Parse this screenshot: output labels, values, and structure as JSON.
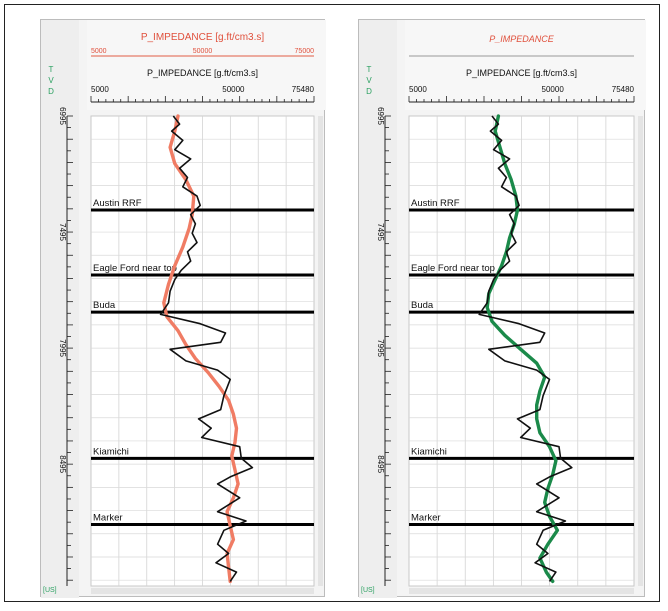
{
  "chart_data": [
    {
      "type": "line",
      "title": "P_IMPEDANCE [g.ft/cm3.s]",
      "scale_min_label": "5000",
      "scale_mid_label": "50000",
      "scale_max_label": "75000",
      "xlabel": "P_IMPEDANCE [g.ft/cm3.s]",
      "x_ticks": [
        "5000",
        "50000",
        "75480"
      ],
      "xlim": [
        5000,
        75480
      ],
      "y_axis_label": "TVD",
      "y_ticks": [
        "6995",
        "7495",
        "7995",
        "8495"
      ],
      "ylim": [
        6995,
        9020
      ],
      "units_label": "[US]",
      "log_color": "#111111",
      "model_color": "#f07c64",
      "formations": [
        {
          "name": "Austin RRF",
          "depth": 7400
        },
        {
          "name": "Eagle Ford near top",
          "depth": 7680
        },
        {
          "name": "Buda",
          "depth": 7840
        },
        {
          "name": "Kiamichi",
          "depth": 8470
        },
        {
          "name": "Marker",
          "depth": 8755
        }
      ],
      "series": [
        {
          "values": [
            [
              31000,
              6995
            ],
            [
              33000,
              7030
            ],
            [
              30500,
              7060
            ],
            [
              34000,
              7100
            ],
            [
              31500,
              7140
            ],
            [
              36500,
              7180
            ],
            [
              33000,
              7220
            ],
            [
              35500,
              7260
            ],
            [
              34000,
              7300
            ],
            [
              38500,
              7340
            ],
            [
              39500,
              7380
            ],
            [
              36500,
              7420
            ],
            [
              38000,
              7460
            ],
            [
              37000,
              7500
            ],
            [
              38500,
              7540
            ],
            [
              35500,
              7580
            ],
            [
              36500,
              7620
            ],
            [
              33500,
              7660
            ],
            [
              31500,
              7700
            ],
            [
              30000,
              7750
            ],
            [
              29500,
              7800
            ],
            [
              27000,
              7850
            ],
            [
              39500,
              7890
            ],
            [
              47500,
              7930
            ],
            [
              46000,
              7970
            ],
            [
              30000,
              8000
            ],
            [
              35000,
              8050
            ],
            [
              45000,
              8090
            ],
            [
              49000,
              8130
            ],
            [
              47000,
              8200
            ],
            [
              46000,
              8260
            ],
            [
              39000,
              8300
            ],
            [
              43000,
              8340
            ],
            [
              40000,
              8380
            ],
            [
              52000,
              8420
            ],
            [
              52500,
              8470
            ],
            [
              56000,
              8510
            ],
            [
              49000,
              8550
            ],
            [
              45000,
              8580
            ],
            [
              52000,
              8640
            ],
            [
              45000,
              8700
            ],
            [
              54000,
              8740
            ],
            [
              47000,
              8780
            ],
            [
              45000,
              8840
            ],
            [
              48500,
              8880
            ],
            [
              44500,
              8920
            ],
            [
              51000,
              8960
            ],
            [
              49000,
              9000
            ]
          ]
        },
        {
          "values": [
            [
              32500,
              6995
            ],
            [
              31500,
              7060
            ],
            [
              30000,
              7130
            ],
            [
              31500,
              7200
            ],
            [
              35000,
              7270
            ],
            [
              37500,
              7340
            ],
            [
              37000,
              7420
            ],
            [
              36000,
              7480
            ],
            [
              34000,
              7560
            ],
            [
              31500,
              7640
            ],
            [
              29500,
              7720
            ],
            [
              28000,
              7800
            ],
            [
              29000,
              7860
            ],
            [
              32500,
              7920
            ],
            [
              35000,
              7980
            ],
            [
              38000,
              8040
            ],
            [
              42000,
              8100
            ],
            [
              45500,
              8160
            ],
            [
              48500,
              8220
            ],
            [
              50000,
              8280
            ],
            [
              51000,
              8340
            ],
            [
              50500,
              8400
            ],
            [
              49500,
              8460
            ],
            [
              50500,
              8520
            ],
            [
              51500,
              8580
            ],
            [
              50000,
              8640
            ],
            [
              48000,
              8700
            ],
            [
              49000,
              8760
            ],
            [
              50000,
              8820
            ],
            [
              48000,
              8880
            ],
            [
              48500,
              8940
            ],
            [
              49000,
              9000
            ]
          ]
        }
      ]
    },
    {
      "type": "line",
      "title": "P_IMPEDANCE",
      "xlabel": "P_IMPEDANCE [g.ft/cm3.s]",
      "x_ticks": [
        "5000",
        "50000",
        "75480"
      ],
      "xlim": [
        5000,
        75480
      ],
      "y_axis_label": "TVD",
      "y_ticks": [
        "6995",
        "7495",
        "7995",
        "8495"
      ],
      "ylim": [
        6995,
        9020
      ],
      "units_label": "[US]",
      "log_color": "#111111",
      "model_color": "#1b8a4a",
      "formations": [
        {
          "name": "Austin RRF",
          "depth": 7400
        },
        {
          "name": "Eagle Ford near top",
          "depth": 7680
        },
        {
          "name": "Buda",
          "depth": 7840
        },
        {
          "name": "Kiamichi",
          "depth": 8470
        },
        {
          "name": "Marker",
          "depth": 8755
        }
      ],
      "series": [
        {
          "values": [
            [
              31000,
              6995
            ],
            [
              33000,
              7030
            ],
            [
              30500,
              7060
            ],
            [
              34000,
              7100
            ],
            [
              31500,
              7140
            ],
            [
              36500,
              7180
            ],
            [
              33000,
              7220
            ],
            [
              35500,
              7260
            ],
            [
              34000,
              7300
            ],
            [
              38500,
              7340
            ],
            [
              39500,
              7380
            ],
            [
              36500,
              7420
            ],
            [
              38000,
              7460
            ],
            [
              37000,
              7500
            ],
            [
              38500,
              7540
            ],
            [
              35500,
              7580
            ],
            [
              36500,
              7620
            ],
            [
              33500,
              7660
            ],
            [
              31500,
              7700
            ],
            [
              30000,
              7750
            ],
            [
              29500,
              7800
            ],
            [
              27000,
              7850
            ],
            [
              39500,
              7890
            ],
            [
              47500,
              7930
            ],
            [
              46000,
              7970
            ],
            [
              30000,
              8000
            ],
            [
              35000,
              8050
            ],
            [
              45000,
              8090
            ],
            [
              49000,
              8130
            ],
            [
              47000,
              8200
            ],
            [
              46000,
              8260
            ],
            [
              39000,
              8300
            ],
            [
              43000,
              8340
            ],
            [
              40000,
              8380
            ],
            [
              52000,
              8420
            ],
            [
              52500,
              8470
            ],
            [
              56000,
              8510
            ],
            [
              49000,
              8550
            ],
            [
              45000,
              8580
            ],
            [
              52000,
              8640
            ],
            [
              45000,
              8700
            ],
            [
              54000,
              8740
            ],
            [
              47000,
              8780
            ],
            [
              45000,
              8840
            ],
            [
              48500,
              8880
            ],
            [
              44500,
              8920
            ],
            [
              51000,
              8960
            ],
            [
              49000,
              9000
            ]
          ]
        },
        {
          "values": [
            [
              33000,
              6995
            ],
            [
              32000,
              7060
            ],
            [
              33500,
              7130
            ],
            [
              35000,
              7200
            ],
            [
              37000,
              7270
            ],
            [
              38500,
              7340
            ],
            [
              39000,
              7400
            ],
            [
              38000,
              7460
            ],
            [
              36500,
              7520
            ],
            [
              35500,
              7580
            ],
            [
              34000,
              7640
            ],
            [
              32000,
              7700
            ],
            [
              30000,
              7760
            ],
            [
              29500,
              7820
            ],
            [
              31000,
              7880
            ],
            [
              35000,
              7940
            ],
            [
              40000,
              8000
            ],
            [
              45000,
              8060
            ],
            [
              47500,
              8120
            ],
            [
              46000,
              8180
            ],
            [
              45000,
              8240
            ],
            [
              45000,
              8300
            ],
            [
              46000,
              8360
            ],
            [
              49000,
              8420
            ],
            [
              51000,
              8480
            ],
            [
              50000,
              8540
            ],
            [
              48500,
              8600
            ],
            [
              47500,
              8660
            ],
            [
              49000,
              8720
            ],
            [
              51500,
              8780
            ],
            [
              48500,
              8840
            ],
            [
              46000,
              8900
            ],
            [
              48000,
              8960
            ],
            [
              50000,
              9000
            ]
          ]
        }
      ]
    }
  ]
}
